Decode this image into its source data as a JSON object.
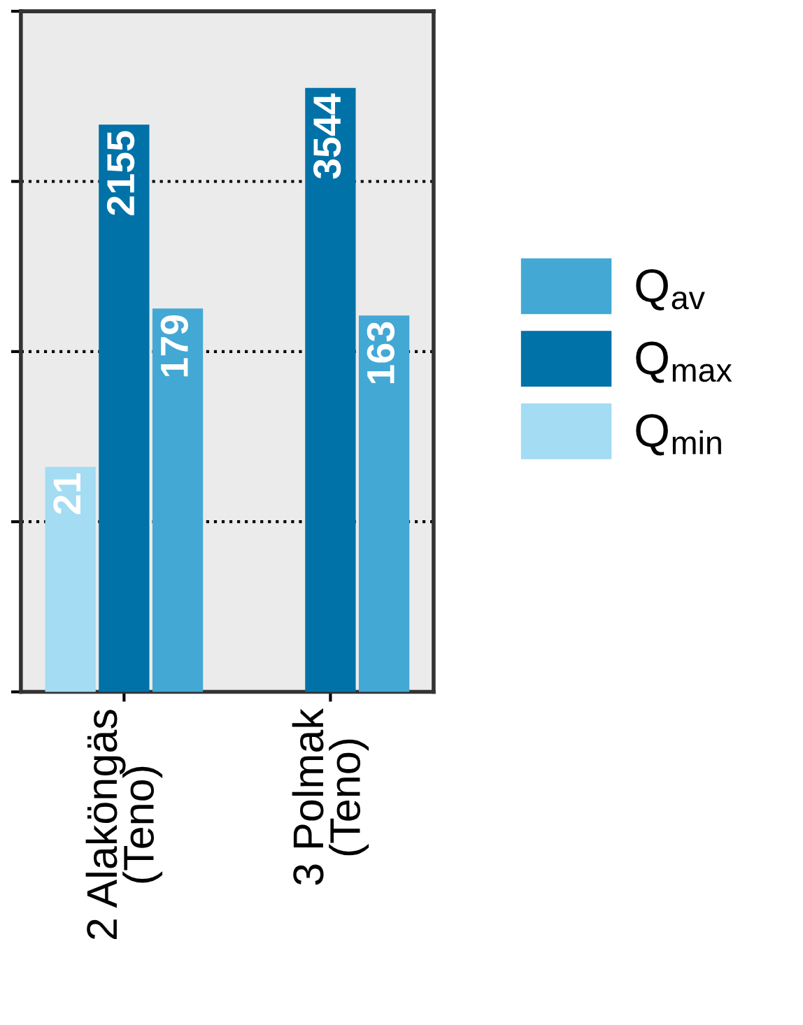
{
  "chart_data": {
    "type": "bar",
    "categories": [
      "2 Alaköngäs\n(Teno)",
      "3 Polmak\n(Teno)"
    ],
    "series": [
      {
        "name": "Q$_{min}$",
        "color": "#a3dcf3",
        "values": [
          21,
          null
        ]
      },
      {
        "name": "Q$_{max}$",
        "color": "#0072a8",
        "values": [
          2155,
          3544
        ]
      },
      {
        "name": "Q$_{av}$",
        "color": "#43a8d4",
        "values": [
          179,
          163
        ]
      }
    ],
    "log": true,
    "ylim": [
      1,
      10000
    ],
    "yticks": [
      {
        "value": 1,
        "label": null
      },
      {
        "value": 10,
        "label": null
      },
      {
        "value": 100,
        "label": null
      },
      {
        "value": 1000,
        "label": null
      },
      {
        "value": 10000,
        "label": null
      }
    ],
    "tick_labels": "x",
    "grid": "y",
    "data_labels": true,
    "legend": "right"
  }
}
